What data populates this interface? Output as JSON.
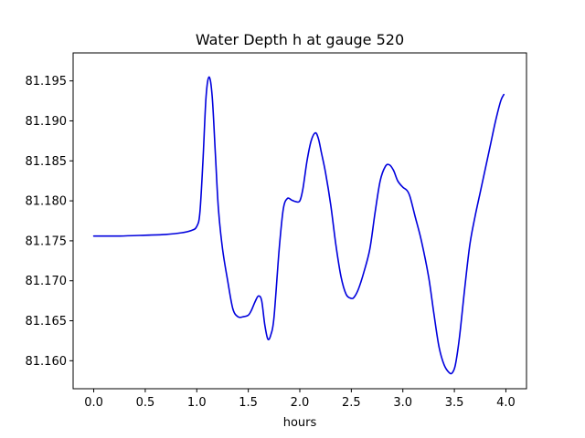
{
  "chart_data": {
    "type": "line",
    "title": "Water Depth h at gauge 520",
    "xlabel": "hours",
    "ylabel": "",
    "xlim": [
      -0.2,
      4.2
    ],
    "ylim": [
      81.1565,
      81.1985
    ],
    "xticks": [
      0.0,
      0.5,
      1.0,
      1.5,
      2.0,
      2.5,
      3.0,
      3.5,
      4.0
    ],
    "xtick_labels": [
      "0.0",
      "0.5",
      "1.0",
      "1.5",
      "2.0",
      "2.5",
      "3.0",
      "3.5",
      "4.0"
    ],
    "yticks": [
      81.16,
      81.165,
      81.17,
      81.175,
      81.18,
      81.185,
      81.19,
      81.195
    ],
    "ytick_labels": [
      "81.160",
      "81.165",
      "81.170",
      "81.175",
      "81.180",
      "81.185",
      "81.190",
      "81.195"
    ],
    "grid": false,
    "legend": "none",
    "series": [
      {
        "color": "#0000dd",
        "x": [
          0.0,
          0.25,
          0.5,
          0.7,
          0.85,
          0.95,
          1.0,
          1.03,
          1.06,
          1.09,
          1.12,
          1.15,
          1.18,
          1.21,
          1.25,
          1.3,
          1.35,
          1.4,
          1.45,
          1.5,
          1.53,
          1.57,
          1.6,
          1.63,
          1.66,
          1.69,
          1.72,
          1.75,
          1.8,
          1.84,
          1.88,
          1.92,
          1.96,
          2.0,
          2.03,
          2.07,
          2.11,
          2.15,
          2.18,
          2.21,
          2.25,
          2.3,
          2.35,
          2.4,
          2.45,
          2.5,
          2.53,
          2.57,
          2.62,
          2.68,
          2.73,
          2.78,
          2.83,
          2.87,
          2.91,
          2.95,
          3.0,
          3.04,
          3.07,
          3.12,
          3.18,
          3.25,
          3.3,
          3.35,
          3.4,
          3.45,
          3.48,
          3.51,
          3.55,
          3.6,
          3.65,
          3.7,
          3.75,
          3.8,
          3.85,
          3.9,
          3.95,
          3.98
        ],
        "values": [
          81.1756,
          81.1756,
          81.1757,
          81.1758,
          81.176,
          81.1763,
          81.1768,
          81.1785,
          81.185,
          81.193,
          81.1955,
          81.193,
          81.186,
          81.179,
          81.174,
          81.17,
          81.1665,
          81.1655,
          81.1655,
          81.1657,
          81.1663,
          81.1675,
          81.1681,
          81.1675,
          81.1645,
          81.1627,
          81.1633,
          81.1655,
          81.174,
          81.179,
          81.1803,
          81.1801,
          81.1799,
          81.18,
          81.1815,
          81.185,
          81.1875,
          81.1885,
          81.1878,
          81.186,
          81.1835,
          81.1795,
          81.1745,
          81.1705,
          81.1683,
          81.1678,
          81.168,
          81.169,
          81.171,
          81.174,
          81.1785,
          81.1825,
          81.1843,
          81.1845,
          81.1838,
          81.1825,
          81.1817,
          81.1813,
          81.1805,
          81.178,
          81.175,
          81.1705,
          81.166,
          81.1618,
          81.1595,
          81.1585,
          81.1585,
          81.1595,
          81.163,
          81.169,
          81.1745,
          81.178,
          81.181,
          81.184,
          81.187,
          81.19,
          81.1925,
          81.1933
        ]
      }
    ]
  }
}
